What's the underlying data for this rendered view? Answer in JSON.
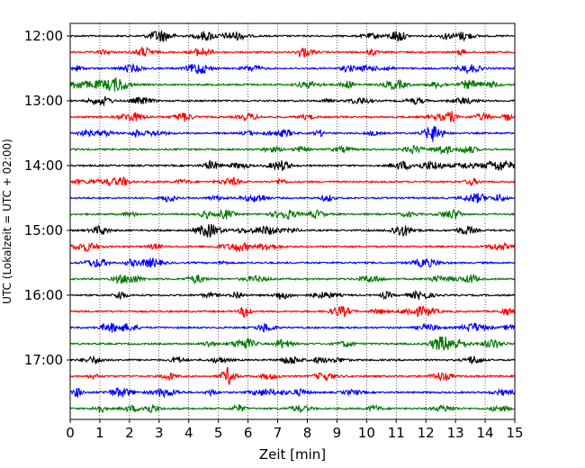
{
  "chart_data": {
    "type": "line",
    "title": "",
    "xlabel": "Zeit  [min]",
    "ylabel": "UTC (Lokalzeit = UTC + 02:00)",
    "xlim": [
      0,
      15
    ],
    "x_ticks": [
      0,
      1,
      2,
      3,
      4,
      5,
      6,
      7,
      8,
      9,
      10,
      11,
      12,
      13,
      14,
      15
    ],
    "y_tick_labels": [
      "12:00",
      "13:00",
      "14:00",
      "15:00",
      "16:00",
      "17:00"
    ],
    "trace_start": "12:00",
    "trace_interval_min": 15,
    "trace_count": 24,
    "colors_cycle": [
      "#000000",
      "#ff0000",
      "#0000ff",
      "#007700"
    ],
    "grid": {
      "vertical": true,
      "style": "dotted"
    },
    "series": [
      {
        "values": []
      }
    ]
  }
}
